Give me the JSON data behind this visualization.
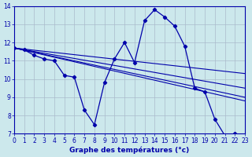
{
  "title": "Graphe des températures (°c)",
  "bg_color": "#cce8ec",
  "grid_color": "#aabbcc",
  "line_color": "#0000aa",
  "xlim": [
    0,
    23
  ],
  "ylim": [
    7,
    14
  ],
  "xticks": [
    0,
    1,
    2,
    3,
    4,
    5,
    6,
    7,
    8,
    9,
    10,
    11,
    12,
    13,
    14,
    15,
    16,
    17,
    18,
    19,
    20,
    21,
    22,
    23
  ],
  "yticks": [
    7,
    8,
    9,
    10,
    11,
    12,
    13,
    14
  ],
  "hourly_x": [
    0,
    1,
    2,
    3,
    4,
    5,
    6,
    7,
    8,
    9,
    10,
    11,
    12,
    13,
    14,
    15,
    16,
    17,
    18,
    19,
    20,
    21,
    22
  ],
  "hourly_y": [
    11.7,
    11.6,
    11.3,
    11.1,
    11.0,
    10.2,
    10.1,
    8.3,
    7.5,
    9.8,
    11.1,
    12.0,
    10.9,
    13.2,
    13.8,
    13.4,
    12.9,
    11.8,
    9.5,
    9.3,
    7.8,
    6.9,
    7.0
  ],
  "trend_lines": [
    [
      0,
      23,
      11.7,
      10.3
    ],
    [
      0,
      23,
      11.7,
      9.5
    ],
    [
      0,
      23,
      11.7,
      9.0
    ],
    [
      0,
      23,
      11.7,
      8.8
    ]
  ]
}
